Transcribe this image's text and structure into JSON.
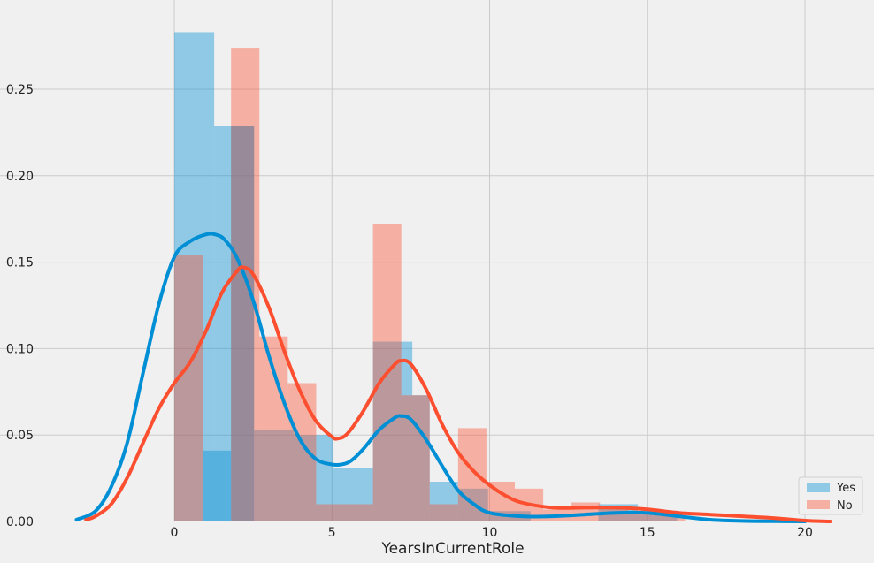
{
  "colors": {
    "yes": "#008fd5",
    "no": "#fc4f30",
    "background": "#f0f0f0",
    "grid": "#cbcbcb"
  },
  "chart_data": {
    "type": "histogram",
    "title": "",
    "xlabel": "YearsInCurrentRole",
    "ylabel": "",
    "xlim": [
      -3.2,
      21.8
    ],
    "ylim": [
      0,
      0.29
    ],
    "xticks": [
      0,
      5,
      10,
      15,
      20
    ],
    "yticks": [
      0.0,
      0.05,
      0.1,
      0.15,
      0.2,
      0.25
    ],
    "ytick_labels": [
      "0.00",
      "0.05",
      "0.10",
      "0.15",
      "0.20",
      "0.25"
    ],
    "grid": true,
    "legend_position": "bottom-right",
    "series": [
      {
        "name": "Yes",
        "color": "#008fd5",
        "bars": [
          {
            "x0": 0,
            "x1": 1.265,
            "h": 0.283
          },
          {
            "x0": 1.265,
            "x1": 2.53,
            "h": 0.229
          },
          {
            "x0": 0.9,
            "x1": 1.8,
            "h": 0.041
          },
          {
            "x0": 1.8,
            "x1": 2.53,
            "h": 0.229
          },
          {
            "x0": 2.53,
            "x1": 3.8,
            "h": 0.053
          },
          {
            "x0": 3.8,
            "x1": 5.05,
            "h": 0.05
          },
          {
            "x0": 5.05,
            "x1": 6.3,
            "h": 0.031
          },
          {
            "x0": 6.3,
            "x1": 7.55,
            "h": 0.104
          },
          {
            "x0": 7.55,
            "x1": 8.1,
            "h": 0.073
          },
          {
            "x0": 8.1,
            "x1": 9.0,
            "h": 0.023
          },
          {
            "x0": 9.0,
            "x1": 9.95,
            "h": 0.019
          },
          {
            "x0": 9.95,
            "x1": 11.3,
            "h": 0.006
          },
          {
            "x0": 13.45,
            "x1": 14.7,
            "h": 0.01
          },
          {
            "x0": 14.7,
            "x1": 15.95,
            "h": 0.004
          }
        ],
        "kde": {
          "x": [
            -3.1,
            -2.5,
            -2,
            -1.5,
            -1,
            -0.5,
            0,
            0.5,
            1,
            1.3,
            1.6,
            2,
            2.5,
            3,
            3.5,
            4,
            4.5,
            5,
            5.3,
            5.6,
            6,
            6.5,
            7,
            7.2,
            7.5,
            8,
            8.5,
            9,
            9.5,
            10,
            11,
            12,
            13,
            14,
            15,
            16,
            17,
            18,
            19,
            20
          ],
          "y": [
            0.001,
            0.006,
            0.02,
            0.045,
            0.085,
            0.125,
            0.153,
            0.162,
            0.166,
            0.166,
            0.163,
            0.152,
            0.128,
            0.096,
            0.068,
            0.047,
            0.036,
            0.033,
            0.033,
            0.035,
            0.042,
            0.053,
            0.06,
            0.061,
            0.059,
            0.047,
            0.032,
            0.018,
            0.01,
            0.005,
            0.003,
            0.003,
            0.004,
            0.005,
            0.005,
            0.003,
            0.001,
            0.0003,
            0.0001,
            0
          ]
        }
      },
      {
        "name": "No",
        "color": "#fc4f30",
        "bars": [
          {
            "x0": 0,
            "x1": 0.9,
            "h": 0.154
          },
          {
            "x0": 1.8,
            "x1": 2.7,
            "h": 0.274
          },
          {
            "x0": 2.7,
            "x1": 3.6,
            "h": 0.107
          },
          {
            "x0": 3.6,
            "x1": 4.5,
            "h": 0.08
          },
          {
            "x0": 4.5,
            "x1": 5.4,
            "h": 0.01
          },
          {
            "x0": 5.4,
            "x1": 6.3,
            "h": 0.01
          },
          {
            "x0": 6.3,
            "x1": 7.2,
            "h": 0.172
          },
          {
            "x0": 7.2,
            "x1": 8.1,
            "h": 0.073
          },
          {
            "x0": 8.1,
            "x1": 9.0,
            "h": 0.01
          },
          {
            "x0": 9.0,
            "x1": 9.9,
            "h": 0.054
          },
          {
            "x0": 9.9,
            "x1": 10.8,
            "h": 0.023
          },
          {
            "x0": 10.8,
            "x1": 11.7,
            "h": 0.019
          },
          {
            "x0": 11.7,
            "x1": 12.6,
            "h": 0.007
          },
          {
            "x0": 12.6,
            "x1": 13.5,
            "h": 0.011
          },
          {
            "x0": 13.5,
            "x1": 14.4,
            "h": 0.008
          },
          {
            "x0": 14.4,
            "x1": 15.3,
            "h": 0.006
          },
          {
            "x0": 15.3,
            "x1": 16.2,
            "h": 0.005
          }
        ],
        "kde": {
          "x": [
            -2.8,
            -2.5,
            -2,
            -1.5,
            -1,
            -0.5,
            0,
            0.5,
            1,
            1.5,
            2,
            2.2,
            2.5,
            3,
            3.5,
            4,
            4.5,
            5,
            5.2,
            5.5,
            6,
            6.5,
            7,
            7.2,
            7.5,
            8,
            8.5,
            9,
            9.5,
            10,
            10.5,
            11,
            12,
            13,
            14,
            15,
            16,
            17,
            18,
            19,
            20,
            20.8
          ],
          "y": [
            0.001,
            0.003,
            0.01,
            0.025,
            0.045,
            0.065,
            0.08,
            0.092,
            0.11,
            0.132,
            0.145,
            0.147,
            0.143,
            0.124,
            0.098,
            0.075,
            0.058,
            0.049,
            0.048,
            0.051,
            0.064,
            0.08,
            0.091,
            0.093,
            0.091,
            0.076,
            0.056,
            0.04,
            0.029,
            0.021,
            0.015,
            0.011,
            0.008,
            0.008,
            0.008,
            0.007,
            0.005,
            0.004,
            0.003,
            0.002,
            0.0005,
            0
          ]
        }
      }
    ]
  }
}
